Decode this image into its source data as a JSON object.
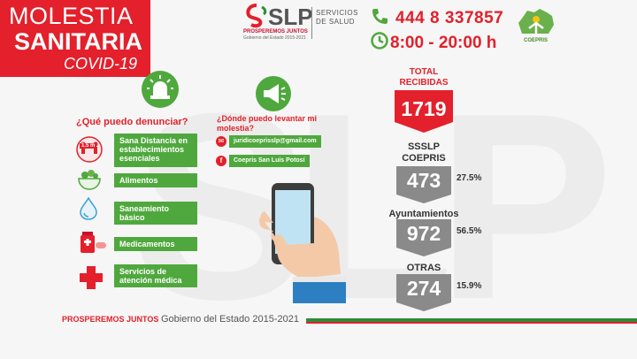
{
  "watermark": "SLP",
  "title": {
    "line1": "MOLESTIA",
    "line2": "SANITARIA",
    "line3": "COVID-19"
  },
  "header": {
    "logo_text": "SLP",
    "logo_sub1": "PROSPEREMOS JUNTOS",
    "logo_sub2": "Gobierno del Estado 2015-2021",
    "dept_line1": "SERVICIOS",
    "dept_line2": "DE SALUD",
    "phone": "444 8 337857",
    "hours": "8:00 - 20:00 h",
    "coepris": "COEPRIS"
  },
  "complaints": {
    "heading": "¿Qué puedo denunciar?",
    "distance_badge": "1.5 m",
    "items": [
      {
        "label": "Sana Distancia en establecimientos esenciales",
        "icon": "social-distance-icon"
      },
      {
        "label": "Alimentos",
        "icon": "food-bowl-icon"
      },
      {
        "label": "Saneamiento básico",
        "icon": "water-drop-icon"
      },
      {
        "label": "Medicamentos",
        "icon": "medicine-icon"
      },
      {
        "label": "Servicios de atención médica",
        "icon": "medical-cross-icon"
      }
    ]
  },
  "report_where": {
    "heading_line1": "¿Dónde puedo levantar mi",
    "heading_line2": "molestia?",
    "email": "juridicoeprisslp@gmail.com",
    "facebook": "Coepris San Luis Potosí"
  },
  "stats": {
    "total_label_line1": "TOTAL",
    "total_label_line2": "RECIBIDAS",
    "total_value": "1719",
    "rows": [
      {
        "label_line1": "SSSLP",
        "label_line2": "COEPRIS",
        "value": "473",
        "pct": "27.5%"
      },
      {
        "label_line1": "Ayuntamientos",
        "label_line2": "",
        "value": "972",
        "pct": "56.5%"
      },
      {
        "label_line1": "OTRAS",
        "label_line2": "",
        "value": "274",
        "pct": "15.9%"
      }
    ]
  },
  "footer": {
    "slogan": "PROSPEREMOS JUNTOS",
    "gov": "Gobierno del Estado 2015-2021"
  },
  "colors": {
    "red": "#e3202b",
    "green": "#4fa83d",
    "gray_arrow": "#8a8a8a"
  }
}
